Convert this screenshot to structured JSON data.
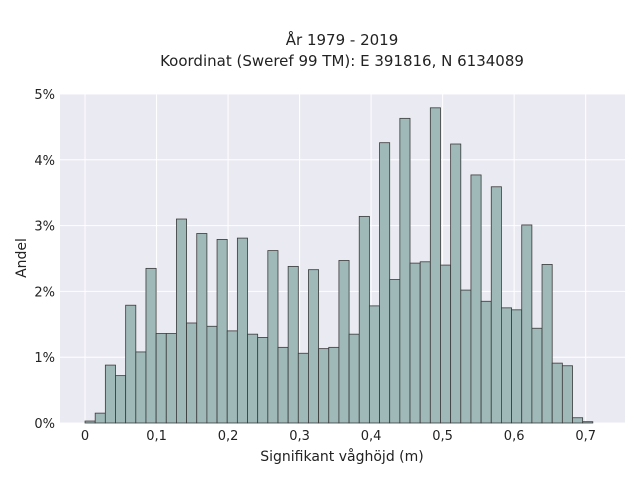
{
  "chart_data": {
    "type": "bar",
    "title": "År 1979 - 2019",
    "subtitle": "Koordinat (Sweref 99 TM): E 391816, N 6134089",
    "xlabel": "Signifikant våghöjd (m)",
    "ylabel": "Andel",
    "xlim": [
      -0.035,
      0.755
    ],
    "ylim": [
      0,
      5
    ],
    "x_ticks": [
      0,
      0.1,
      0.2,
      0.3,
      0.4,
      0.5,
      0.6,
      0.7
    ],
    "x_tick_labels": [
      "0",
      "0,1",
      "0,2",
      "0,3",
      "0,4",
      "0,5",
      "0,6",
      "0,7"
    ],
    "y_ticks": [
      0,
      1,
      2,
      3,
      4,
      5
    ],
    "y_tick_labels": [
      "0%",
      "1%",
      "2%",
      "3%",
      "4%",
      "5%"
    ],
    "bin_width": 0.0142,
    "bin_start": 0,
    "values": [
      0.03,
      0.15,
      0.88,
      0.72,
      1.79,
      1.08,
      2.35,
      1.36,
      1.36,
      3.1,
      1.52,
      2.88,
      1.47,
      2.79,
      1.4,
      2.81,
      1.35,
      1.3,
      2.62,
      1.15,
      2.38,
      1.06,
      2.33,
      1.13,
      1.15,
      2.47,
      1.35,
      3.14,
      1.78,
      4.26,
      2.18,
      4.63,
      2.43,
      2.45,
      4.79,
      2.4,
      4.24,
      2.02,
      3.77,
      1.85,
      3.59,
      1.75,
      1.72,
      3.01,
      1.44,
      2.41,
      0.91,
      0.87,
      0.08,
      0.02
    ],
    "grid": true,
    "colors": {
      "background": "#eaeaf2",
      "bar_fill": "#9fb8b8",
      "bar_edge": "#3a3a3a",
      "grid": "#ffffff"
    }
  }
}
